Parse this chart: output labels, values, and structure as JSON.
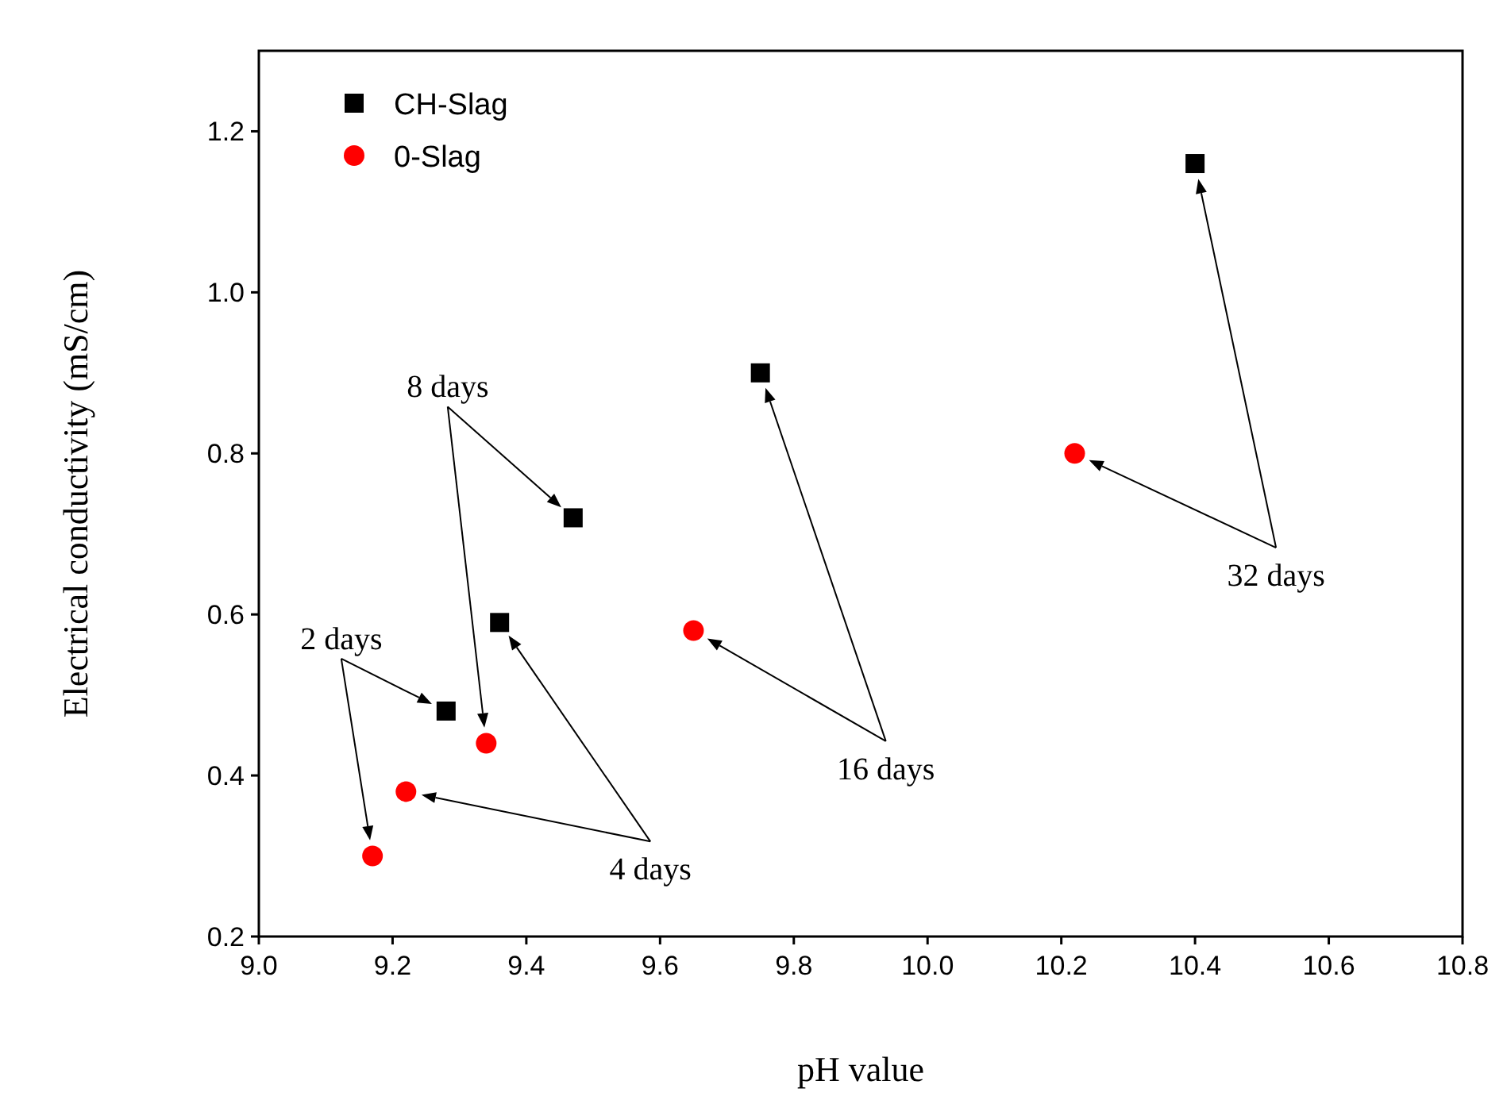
{
  "chart_data": {
    "type": "scatter",
    "xlabel": "pH value",
    "ylabel": "Electrical conductivity (mS/cm)",
    "xlim": [
      9.0,
      10.8
    ],
    "ylim": [
      0.2,
      1.3
    ],
    "xticks": [
      {
        "value": 9.0,
        "label": "9.0"
      },
      {
        "value": 9.2,
        "label": "9.2"
      },
      {
        "value": 9.4,
        "label": "9.4"
      },
      {
        "value": 9.6,
        "label": "9.6"
      },
      {
        "value": 9.8,
        "label": "9.8"
      },
      {
        "value": 10.0,
        "label": "10.0"
      },
      {
        "value": 10.2,
        "label": "10.2"
      },
      {
        "value": 10.4,
        "label": "10.4"
      },
      {
        "value": 10.6,
        "label": "10.6"
      },
      {
        "value": 10.8,
        "label": "10.8"
      }
    ],
    "yticks": [
      {
        "value": 0.2,
        "label": "0.2"
      },
      {
        "value": 0.4,
        "label": "0.4"
      },
      {
        "value": 0.6,
        "label": "0.6"
      },
      {
        "value": 0.8,
        "label": "0.8"
      },
      {
        "value": 1.0,
        "label": "1.0"
      },
      {
        "value": 1.2,
        "label": "1.2"
      }
    ],
    "grid": false,
    "legend": "top left",
    "series": [
      {
        "name": "CH-Slag",
        "color": "#000000",
        "marker": "square",
        "x": [
          9.28,
          9.36,
          9.47,
          9.75,
          10.4
        ],
        "values": [
          0.48,
          0.59,
          0.72,
          0.9,
          1.16
        ]
      },
      {
        "name": "0-Slag",
        "color": "#ff0000",
        "marker": "circle",
        "x": [
          9.17,
          9.22,
          9.34,
          9.65,
          10.22
        ],
        "values": [
          0.3,
          0.38,
          0.44,
          0.58,
          0.8
        ]
      }
    ],
    "annotations": [
      "2 days",
      "4 days",
      "8 days",
      "16 days",
      "32 days"
    ]
  }
}
